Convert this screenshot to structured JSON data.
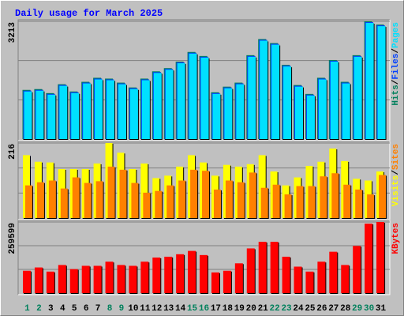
{
  "chart_data": [
    {
      "type": "bar",
      "title": "Daily usage for March 2025",
      "categories": [
        "1",
        "2",
        "3",
        "4",
        "5",
        "6",
        "7",
        "8",
        "9",
        "10",
        "11",
        "12",
        "13",
        "14",
        "15",
        "16",
        "17",
        "18",
        "19",
        "20",
        "21",
        "22",
        "23",
        "24",
        "25",
        "26",
        "27",
        "28",
        "29",
        "30",
        "31"
      ],
      "ylim": [
        0,
        3213
      ],
      "yticks": [
        3213
      ],
      "legend_separator": "/",
      "series": [
        {
          "name": "Hits",
          "color": "#00805c",
          "values": [
            1342,
            1364,
            1254,
            1496,
            1298,
            1562,
            1672,
            1650,
            1540,
            1408,
            1650,
            1848,
            1936,
            2113,
            2377,
            2267,
            1276,
            1430,
            1540,
            2289,
            2729,
            2619,
            2025,
            1474,
            1232,
            1672,
            2157,
            1562,
            2289,
            3213,
            3125
          ]
        },
        {
          "name": "Files",
          "color": "#0040ff",
          "values": [
            1320,
            1342,
            1232,
            1474,
            1276,
            1540,
            1650,
            1628,
            1518,
            1386,
            1628,
            1826,
            1914,
            2091,
            2355,
            2245,
            1254,
            1408,
            1518,
            2267,
            2707,
            2597,
            2003,
            1452,
            1210,
            1650,
            2135,
            1540,
            2267,
            3191,
            3103
          ]
        },
        {
          "name": "Pages",
          "color": "#00e0ff",
          "values": [
            1298,
            1320,
            1210,
            1452,
            1254,
            1518,
            1628,
            1606,
            1496,
            1364,
            1606,
            1804,
            1892,
            2069,
            2333,
            2223,
            1232,
            1386,
            1496,
            2245,
            2685,
            2575,
            1981,
            1430,
            1188,
            1628,
            2113,
            1518,
            2245,
            3169,
            3081
          ]
        }
      ]
    },
    {
      "type": "bar",
      "ylim": [
        0,
        216
      ],
      "yticks": [
        216
      ],
      "legend_separator": "/",
      "series": [
        {
          "name": "Visits",
          "color": "#ffff00",
          "values": [
            181,
            162,
            160,
            141,
            141,
            141,
            157,
            216,
            188,
            141,
            157,
            115,
            122,
            148,
            181,
            160,
            122,
            153,
            148,
            155,
            181,
            134,
            94,
            117,
            150,
            162,
            200,
            164,
            113,
            108,
            134
          ]
        },
        {
          "name": "Sites",
          "color": "#ff8000",
          "values": [
            94,
            103,
            108,
            85,
            117,
            101,
            106,
            148,
            139,
            101,
            73,
            78,
            94,
            108,
            139,
            136,
            82,
            108,
            103,
            131,
            87,
            96,
            68,
            92,
            92,
            120,
            129,
            96,
            82,
            68,
            124
          ]
        }
      ]
    },
    {
      "type": "bar",
      "ylim": [
        0,
        259599
      ],
      "yticks": [
        259599
      ],
      "categories": [
        "1",
        "2",
        "3",
        "4",
        "5",
        "6",
        "7",
        "8",
        "9",
        "10",
        "11",
        "12",
        "13",
        "14",
        "15",
        "16",
        "17",
        "18",
        "19",
        "20",
        "21",
        "22",
        "23",
        "24",
        "25",
        "26",
        "27",
        "28",
        "29",
        "30",
        "31"
      ],
      "category_label_colors": [
        "#00805c",
        "#00805c",
        "#000000",
        "#000000",
        "#000000",
        "#000000",
        "#000000",
        "#00805c",
        "#00805c",
        "#000000",
        "#000000",
        "#000000",
        "#000000",
        "#000000",
        "#00805c",
        "#00805c",
        "#000000",
        "#000000",
        "#000000",
        "#000000",
        "#000000",
        "#00805c",
        "#00805c",
        "#000000",
        "#000000",
        "#000000",
        "#000000",
        "#000000",
        "#00805c",
        "#00805c",
        "#000000"
      ],
      "series": [
        {
          "name": "KBytes",
          "color": "#ff0000",
          "values": [
            81500,
            93600,
            78500,
            102600,
            87500,
            99600,
            99600,
            114700,
            102600,
            99600,
            114700,
            129800,
            132800,
            141900,
            154000,
            138900,
            75500,
            81500,
            108700,
            163100,
            187200,
            187200,
            132800,
            96600,
            78500,
            114700,
            151000,
            102600,
            172200,
            253600,
            259599
          ]
        }
      ]
    }
  ]
}
